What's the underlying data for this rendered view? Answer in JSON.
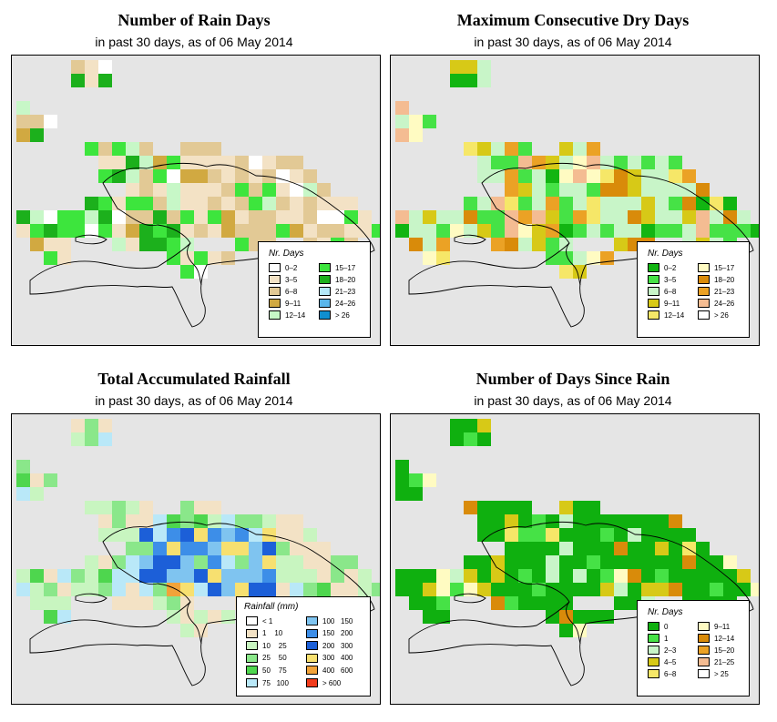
{
  "panels": [
    {
      "id": "rain-days",
      "title": "Number of Rain Days",
      "subtitle": "in past 30 days, as of  06 May 2014",
      "legend_title": "Nr. Days",
      "legend_items": [
        {
          "label": "0–2",
          "color": "#ffffff"
        },
        {
          "label": "3–5",
          "color": "#f3e2c5"
        },
        {
          "label": "6–8",
          "color": "#e2c995"
        },
        {
          "label": "9–11",
          "color": "#d1a941"
        },
        {
          "label": "12–14",
          "color": "#c7f7c7"
        },
        {
          "label": "15–17",
          "color": "#3de53d"
        },
        {
          "label": "18–20",
          "color": "#1cb01c"
        },
        {
          "label": "21–23",
          "color": "#b3e8f8"
        },
        {
          "label": "24–26",
          "color": "#5ab6ea"
        },
        {
          "label": "> 26",
          "color": "#0f8fd0"
        }
      ]
    },
    {
      "id": "dry-days",
      "title": "Maximum Consecutive Dry Days",
      "subtitle": "in past 30 days, as of  06 May 2014",
      "legend_title": "Nr. Days",
      "legend_items": [
        {
          "label": "0–2",
          "color": "#12b512"
        },
        {
          "label": "3–5",
          "color": "#46e246"
        },
        {
          "label": "6–8",
          "color": "#c8f5c8"
        },
        {
          "label": "9–11",
          "color": "#d7c917"
        },
        {
          "label": "12–14",
          "color": "#f6e768"
        },
        {
          "label": "15–17",
          "color": "#fffbc2"
        },
        {
          "label": "18–20",
          "color": "#d98b0a"
        },
        {
          "label": "21–23",
          "color": "#eba225"
        },
        {
          "label": "24–26",
          "color": "#f4bc92"
        },
        {
          "label": "> 26",
          "color": "#ffffff"
        }
      ]
    },
    {
      "id": "rainfall",
      "title": "Total Accumulated Rainfall",
      "subtitle": "in past 30 days, as of  06 May 2014",
      "legend_title": "Rainfall (mm)",
      "legend_items": [
        {
          "label": "< 1",
          "color": "#ffffff"
        },
        {
          "label": "1    10",
          "color": "#f3e2c5"
        },
        {
          "label": "10    25",
          "color": "#c8f5c0"
        },
        {
          "label": "25    50",
          "color": "#8ae78a"
        },
        {
          "label": "50    75",
          "color": "#4ed64e"
        },
        {
          "label": "75   100",
          "color": "#b9e8f8"
        },
        {
          "label": "100   150",
          "color": "#7fc4f0"
        },
        {
          "label": "150   200",
          "color": "#3d8ee8"
        },
        {
          "label": "200   300",
          "color": "#1c5fd8"
        },
        {
          "label": "300   400",
          "color": "#f7e070"
        },
        {
          "label": "400   600",
          "color": "#f2a33a"
        },
        {
          "label": "> 600",
          "color": "#f23c1c"
        }
      ]
    },
    {
      "id": "days-since-rain",
      "title": "Number of Days Since Rain",
      "subtitle": "in past 30 days, as of  06 May 2014",
      "legend_title": "Nr. Days",
      "legend_items": [
        {
          "label": "0",
          "color": "#0fb00f"
        },
        {
          "label": "1",
          "color": "#46e246"
        },
        {
          "label": "2–3",
          "color": "#c8f5c8"
        },
        {
          "label": "4–5",
          "color": "#d7c917"
        },
        {
          "label": "6–8",
          "color": "#f6e768"
        },
        {
          "label": "9–11",
          "color": "#fffbc2"
        },
        {
          "label": "12–14",
          "color": "#d98b0a"
        },
        {
          "label": "15–20",
          "color": "#eba225"
        },
        {
          "label": "21–25",
          "color": "#f4bc92"
        },
        {
          "label": "> 25",
          "color": "#ffffff"
        }
      ]
    }
  ]
}
